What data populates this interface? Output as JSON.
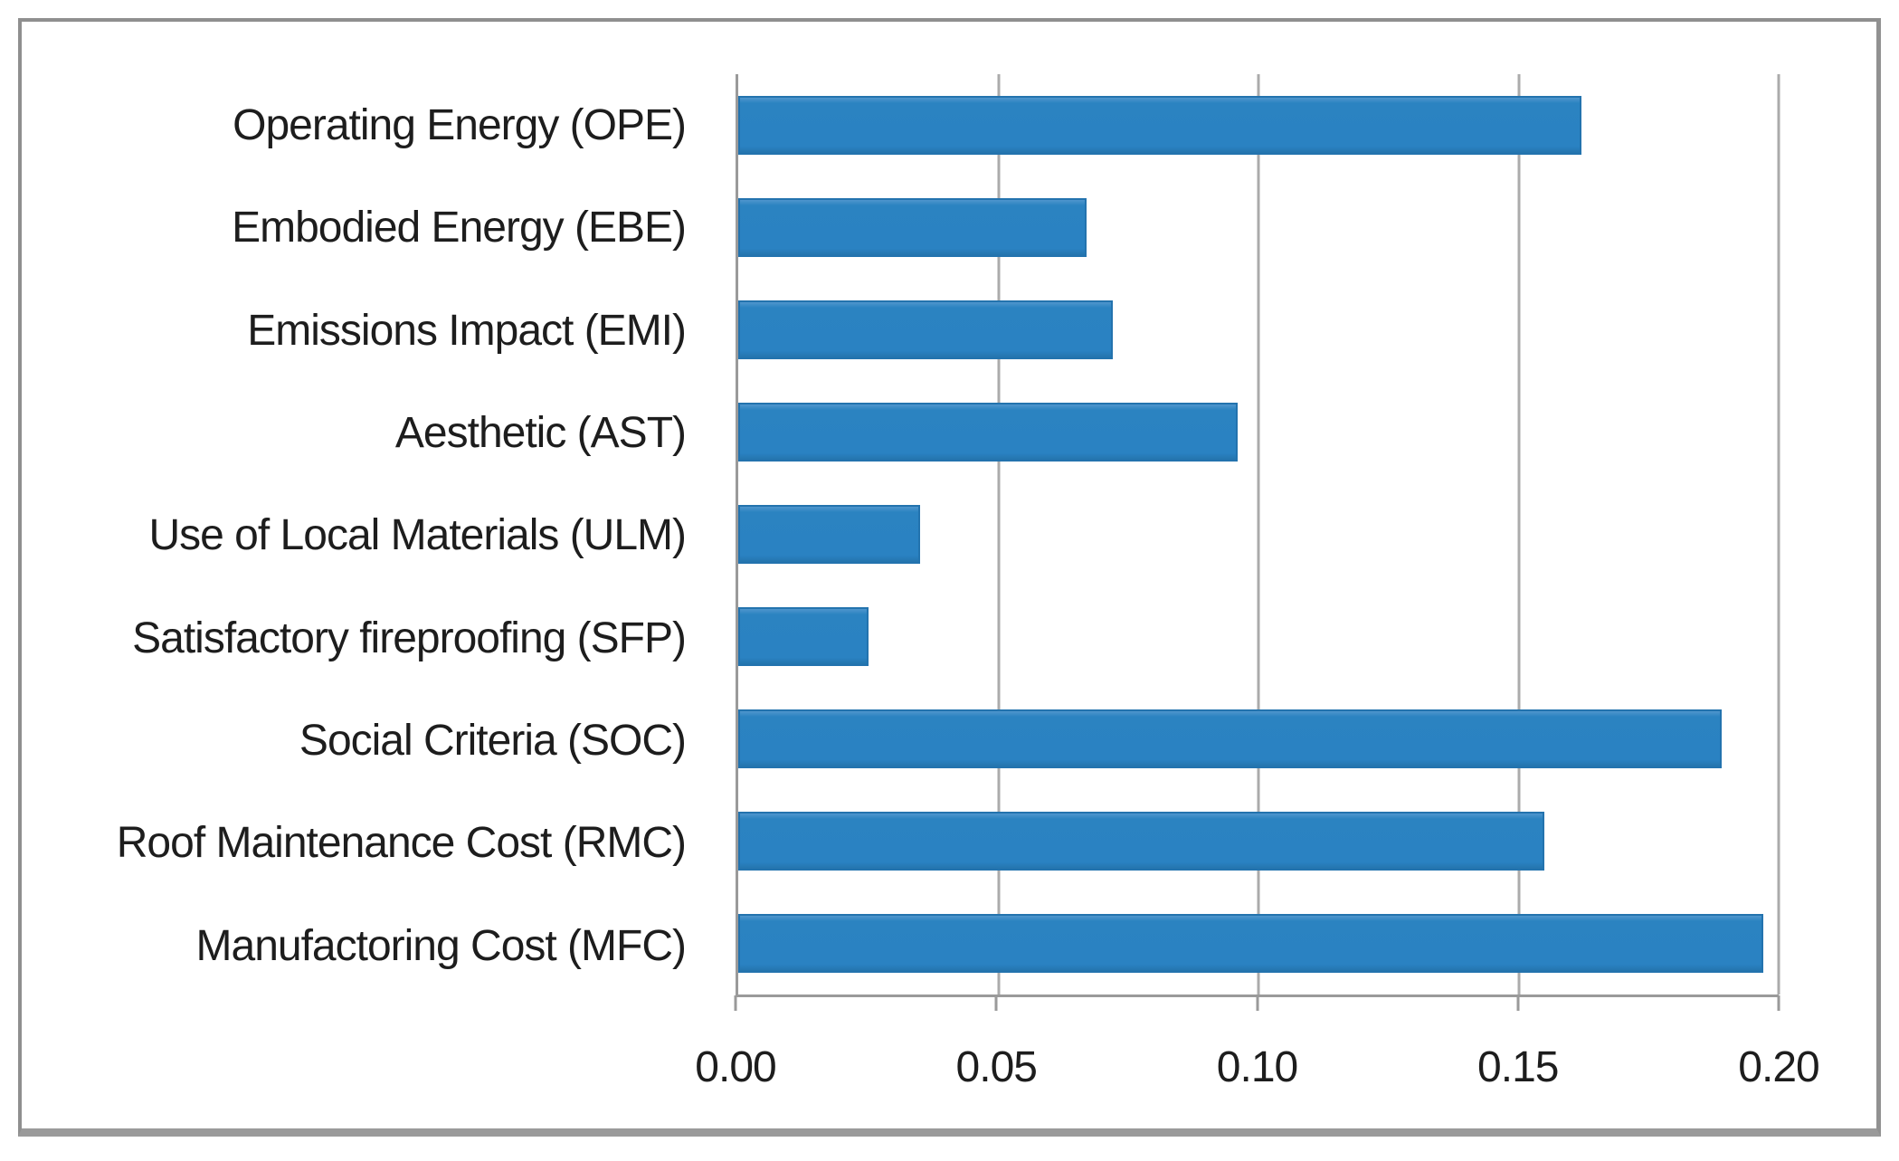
{
  "chart_data": {
    "type": "bar",
    "orientation": "horizontal",
    "title": "",
    "xlabel": "",
    "ylabel": "",
    "categories": [
      "Operating Energy (OPE)",
      "Embodied Energy (EBE)",
      "Emissions Impact (EMI)",
      "Aesthetic (AST)",
      "Use of Local Materials (ULM)",
      "Satisfactory fireproofing (SFP)",
      "Social Criteria (SOC)",
      "Roof Maintenance Cost (RMC)",
      "Manufactoring Cost (MFC)"
    ],
    "values": [
      0.162,
      0.067,
      0.072,
      0.096,
      0.035,
      0.025,
      0.189,
      0.155,
      0.197
    ],
    "xlim": [
      0.0,
      0.2
    ],
    "xticks": [
      0.0,
      0.05,
      0.1,
      0.15,
      0.2
    ],
    "xtick_labels": [
      "0.00",
      "0.05",
      "0.10",
      "0.15",
      "0.20"
    ],
    "grid": true,
    "legend": false,
    "colors": {
      "bar_fill": "#2a82c2",
      "bar_border": "#2373ae",
      "gridline": "#ababab",
      "axis_line": "#9a9a9a",
      "text": "#1d1d1d",
      "frame_border": "#8f8f8f",
      "background": "#ffffff"
    }
  }
}
